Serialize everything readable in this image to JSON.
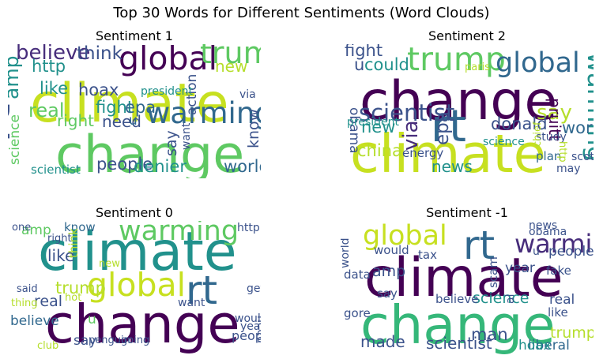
{
  "title": "Top 30 Words for Different Sentiments (Word Clouds)",
  "chart_data": [
    {
      "type": "wordcloud",
      "title": "Sentiment 1",
      "words": [
        {
          "text": "climate",
          "weight": 1.0,
          "color": "#c7e020"
        },
        {
          "text": "change",
          "weight": 0.95,
          "color": "#5ec962"
        },
        {
          "text": "rt",
          "weight": 0.9,
          "color": "#3b528b"
        },
        {
          "text": "global",
          "weight": 0.55,
          "color": "#440154"
        },
        {
          "text": "trump",
          "weight": 0.5,
          "color": "#5ec962"
        },
        {
          "text": "warming",
          "weight": 0.48,
          "color": "#31688e"
        },
        {
          "text": "believe",
          "weight": 0.3,
          "color": "#472d7b"
        },
        {
          "text": "think",
          "weight": 0.25,
          "color": "#3b528b"
        },
        {
          "text": "amp",
          "weight": 0.28,
          "color": "#21918c"
        },
        {
          "text": "real",
          "weight": 0.26,
          "color": "#5ec962"
        },
        {
          "text": "http",
          "weight": 0.22,
          "color": "#21918c"
        },
        {
          "text": "like",
          "weight": 0.22,
          "color": "#21918c"
        },
        {
          "text": "hoax",
          "weight": 0.22,
          "color": "#3b528b"
        },
        {
          "text": "fight",
          "weight": 0.22,
          "color": "#21918c"
        },
        {
          "text": "epa",
          "weight": 0.22,
          "color": "#31688e"
        },
        {
          "text": "right",
          "weight": 0.2,
          "color": "#5ec962"
        },
        {
          "text": "need",
          "weight": 0.2,
          "color": "#3b528b"
        },
        {
          "text": "people",
          "weight": 0.22,
          "color": "#3b528b"
        },
        {
          "text": "denier",
          "weight": 0.22,
          "color": "#21918c"
        },
        {
          "text": "world",
          "weight": 0.22,
          "color": "#31688e"
        },
        {
          "text": "new",
          "weight": 0.2,
          "color": "#b5de2b"
        },
        {
          "text": "action",
          "weight": 0.15,
          "color": "#3b528b"
        },
        {
          "text": "say",
          "weight": 0.18,
          "color": "#3b528b"
        },
        {
          "text": "know",
          "weight": 0.18,
          "color": "#3b528b"
        },
        {
          "text": "science",
          "weight": 0.15,
          "color": "#5ec962"
        },
        {
          "text": "scientist",
          "weight": 0.12,
          "color": "#21918c"
        },
        {
          "text": "president",
          "weight": 0.1,
          "color": "#21918c"
        },
        {
          "text": "want",
          "weight": 0.1,
          "color": "#3b528b"
        },
        {
          "text": "via",
          "weight": 0.1,
          "color": "#3b528b"
        },
        {
          "text": "u",
          "weight": 0.15,
          "color": "#31688e"
        }
      ]
    },
    {
      "type": "wordcloud",
      "title": "Sentiment 2",
      "words": [
        {
          "text": "change",
          "weight": 1.0,
          "color": "#440154"
        },
        {
          "text": "climate",
          "weight": 0.98,
          "color": "#c7e020"
        },
        {
          "text": "rt",
          "weight": 0.8,
          "color": "#31688e"
        },
        {
          "text": "trump",
          "weight": 0.55,
          "color": "#5ec962"
        },
        {
          "text": "global",
          "weight": 0.45,
          "color": "#31688e"
        },
        {
          "text": "warming",
          "weight": 0.4,
          "color": "#21918c"
        },
        {
          "text": "scientist",
          "weight": 0.35,
          "color": "#3b528b"
        },
        {
          "text": "fight",
          "weight": 0.22,
          "color": "#3b528b"
        },
        {
          "text": "could",
          "weight": 0.22,
          "color": "#21918c"
        },
        {
          "text": "u",
          "weight": 0.22,
          "color": "#3b528b"
        },
        {
          "text": "say",
          "weight": 0.3,
          "color": "#b5de2b"
        },
        {
          "text": "pruitt",
          "weight": 0.2,
          "color": "#440154"
        },
        {
          "text": "donald",
          "weight": 0.22,
          "color": "#3b528b"
        },
        {
          "text": "world",
          "weight": 0.22,
          "color": "#31688e"
        },
        {
          "text": "new",
          "weight": 0.22,
          "color": "#21918c"
        },
        {
          "text": "epa",
          "weight": 0.25,
          "color": "#3b528b"
        },
        {
          "text": "via",
          "weight": 0.3,
          "color": "#472d7b"
        },
        {
          "text": "obama",
          "weight": 0.15,
          "color": "#3b528b"
        },
        {
          "text": "china",
          "weight": 0.22,
          "color": "#b5de2b"
        },
        {
          "text": "president",
          "weight": 0.1,
          "color": "#21918c"
        },
        {
          "text": "news",
          "weight": 0.2,
          "color": "#21918c"
        },
        {
          "text": "energy",
          "weight": 0.12,
          "color": "#3b528b"
        },
        {
          "text": "plan",
          "weight": 0.12,
          "color": "#31688e"
        },
        {
          "text": "scott",
          "weight": 0.1,
          "color": "#3b528b"
        },
        {
          "text": "study",
          "weight": 0.1,
          "color": "#3b528b"
        },
        {
          "text": "science",
          "weight": 0.1,
          "color": "#21918c"
        },
        {
          "text": "chief",
          "weight": 0.08,
          "color": "#b5de2b"
        },
        {
          "text": "paris",
          "weight": 0.08,
          "color": "#b5de2b"
        },
        {
          "text": "may",
          "weight": 0.1,
          "color": "#3b528b"
        },
        {
          "text": "http",
          "weight": 0.08,
          "color": "#b5de2b"
        }
      ]
    },
    {
      "type": "wordcloud",
      "title": "Sentiment 0",
      "words": [
        {
          "text": "climate",
          "weight": 1.0,
          "color": "#21918c"
        },
        {
          "text": "change",
          "weight": 0.98,
          "color": "#440154"
        },
        {
          "text": "rt",
          "weight": 0.7,
          "color": "#31688e"
        },
        {
          "text": "global",
          "weight": 0.55,
          "color": "#c7e020"
        },
        {
          "text": "warming",
          "weight": 0.45,
          "color": "#5ec962"
        },
        {
          "text": "trump",
          "weight": 0.22,
          "color": "#b5de2b"
        },
        {
          "text": "like",
          "weight": 0.2,
          "color": "#3b528b"
        },
        {
          "text": "real",
          "weight": 0.18,
          "color": "#3b528b"
        },
        {
          "text": "believe",
          "weight": 0.15,
          "color": "#31688e"
        },
        {
          "text": "amp",
          "weight": 0.15,
          "color": "#5ec962"
        },
        {
          "text": "know",
          "weight": 0.12,
          "color": "#31688e"
        },
        {
          "text": "think",
          "weight": 0.12,
          "color": "#b5de2b"
        },
        {
          "text": "say",
          "weight": 0.15,
          "color": "#3b528b"
        },
        {
          "text": "people",
          "weight": 0.13,
          "color": "#3b528b"
        },
        {
          "text": "u",
          "weight": 0.15,
          "color": "#5ec962"
        },
        {
          "text": "would",
          "weight": 0.1,
          "color": "#3b528b"
        },
        {
          "text": "year",
          "weight": 0.1,
          "color": "#3b528b"
        },
        {
          "text": "need",
          "weight": 0.1,
          "color": "#3b528b"
        },
        {
          "text": "get",
          "weight": 0.1,
          "color": "#3b528b"
        },
        {
          "text": "want",
          "weight": 0.1,
          "color": "#3b528b"
        },
        {
          "text": "http",
          "weight": 0.1,
          "color": "#3b528b"
        },
        {
          "text": "one",
          "weight": 0.08,
          "color": "#3b528b"
        },
        {
          "text": "right",
          "weight": 0.08,
          "color": "#3b528b"
        },
        {
          "text": "said",
          "weight": 0.08,
          "color": "#3b528b"
        },
        {
          "text": "thing",
          "weight": 0.08,
          "color": "#b5de2b"
        },
        {
          "text": "hot",
          "weight": 0.08,
          "color": "#b5de2b"
        },
        {
          "text": "new",
          "weight": 0.08,
          "color": "#b5de2b"
        },
        {
          "text": "club",
          "weight": 0.08,
          "color": "#b5de2b"
        },
        {
          "text": "penguin",
          "weight": 0.08,
          "color": "#3b528b"
        },
        {
          "text": "going",
          "weight": 0.08,
          "color": "#3b528b"
        }
      ]
    },
    {
      "type": "wordcloud",
      "title": "Sentiment -1",
      "words": [
        {
          "text": "climate",
          "weight": 1.0,
          "color": "#440154"
        },
        {
          "text": "change",
          "weight": 0.98,
          "color": "#35b779"
        },
        {
          "text": "rt",
          "weight": 0.7,
          "color": "#31688e"
        },
        {
          "text": "global",
          "weight": 0.45,
          "color": "#c7e020"
        },
        {
          "text": "warming",
          "weight": 0.4,
          "color": "#472d7b"
        },
        {
          "text": "scientist",
          "weight": 0.2,
          "color": "#3b528b"
        },
        {
          "text": "science",
          "weight": 0.18,
          "color": "#21918c"
        },
        {
          "text": "man",
          "weight": 0.22,
          "color": "#3b528b"
        },
        {
          "text": "made",
          "weight": 0.2,
          "color": "#3b528b"
        },
        {
          "text": "amp",
          "weight": 0.18,
          "color": "#3b528b"
        },
        {
          "text": "people",
          "weight": 0.15,
          "color": "#3b528b"
        },
        {
          "text": "real",
          "weight": 0.15,
          "color": "#3b528b"
        },
        {
          "text": "trump",
          "weight": 0.18,
          "color": "#b5de2b"
        },
        {
          "text": "liberal",
          "weight": 0.15,
          "color": "#31688e"
        },
        {
          "text": "hoax",
          "weight": 0.15,
          "color": "#21918c"
        },
        {
          "text": "year",
          "weight": 0.15,
          "color": "#3b528b"
        },
        {
          "text": "fake",
          "weight": 0.12,
          "color": "#3b528b"
        },
        {
          "text": "like",
          "weight": 0.12,
          "color": "#3b528b"
        },
        {
          "text": "believe",
          "weight": 0.12,
          "color": "#3b528b"
        },
        {
          "text": "tax",
          "weight": 0.12,
          "color": "#3b528b"
        },
        {
          "text": "data",
          "weight": 0.12,
          "color": "#3b528b"
        },
        {
          "text": "say",
          "weight": 0.12,
          "color": "#3b528b"
        },
        {
          "text": "gore",
          "weight": 0.12,
          "color": "#3b528b"
        },
        {
          "text": "would",
          "weight": 0.12,
          "color": "#3b528b"
        },
        {
          "text": "scam",
          "weight": 0.12,
          "color": "#3b528b"
        },
        {
          "text": "news",
          "weight": 0.1,
          "color": "#3b528b"
        },
        {
          "text": "obama",
          "weight": 0.1,
          "color": "#3b528b"
        },
        {
          "text": "al",
          "weight": 0.1,
          "color": "#3b528b"
        },
        {
          "text": "world",
          "weight": 0.1,
          "color": "#3b528b"
        },
        {
          "text": "u",
          "weight": 0.1,
          "color": "#3b528b"
        }
      ]
    }
  ]
}
